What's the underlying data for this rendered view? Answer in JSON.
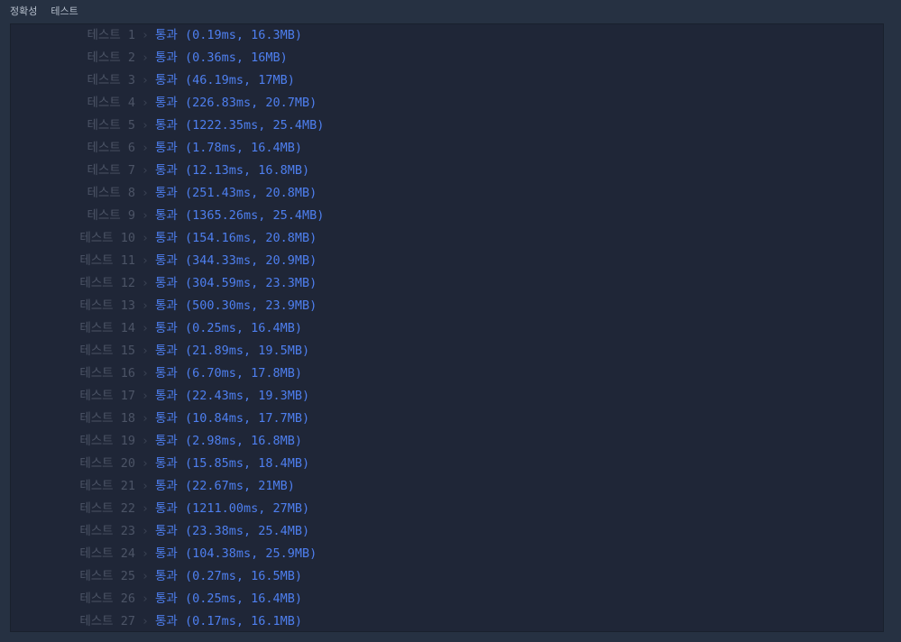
{
  "tabs": [
    "정확성",
    "테스트"
  ],
  "colors": {
    "pass": "#4e7fef",
    "label": "#4c5466",
    "background": "#263142",
    "panel": "#1f2637"
  },
  "chevron_icon": "chevron-right-icon",
  "tests": [
    {
      "label": "테스트 1",
      "status": "통과",
      "detail": "(0.19ms, 16.3MB)"
    },
    {
      "label": "테스트 2",
      "status": "통과",
      "detail": "(0.36ms, 16MB)"
    },
    {
      "label": "테스트 3",
      "status": "통과",
      "detail": "(46.19ms, 17MB)"
    },
    {
      "label": "테스트 4",
      "status": "통과",
      "detail": "(226.83ms, 20.7MB)"
    },
    {
      "label": "테스트 5",
      "status": "통과",
      "detail": "(1222.35ms, 25.4MB)"
    },
    {
      "label": "테스트 6",
      "status": "통과",
      "detail": "(1.78ms, 16.4MB)"
    },
    {
      "label": "테스트 7",
      "status": "통과",
      "detail": "(12.13ms, 16.8MB)"
    },
    {
      "label": "테스트 8",
      "status": "통과",
      "detail": "(251.43ms, 20.8MB)"
    },
    {
      "label": "테스트 9",
      "status": "통과",
      "detail": "(1365.26ms, 25.4MB)"
    },
    {
      "label": "테스트 10",
      "status": "통과",
      "detail": "(154.16ms, 20.8MB)"
    },
    {
      "label": "테스트 11",
      "status": "통과",
      "detail": "(344.33ms, 20.9MB)"
    },
    {
      "label": "테스트 12",
      "status": "통과",
      "detail": "(304.59ms, 23.3MB)"
    },
    {
      "label": "테스트 13",
      "status": "통과",
      "detail": "(500.30ms, 23.9MB)"
    },
    {
      "label": "테스트 14",
      "status": "통과",
      "detail": "(0.25ms, 16.4MB)"
    },
    {
      "label": "테스트 15",
      "status": "통과",
      "detail": "(21.89ms, 19.5MB)"
    },
    {
      "label": "테스트 16",
      "status": "통과",
      "detail": "(6.70ms, 17.8MB)"
    },
    {
      "label": "테스트 17",
      "status": "통과",
      "detail": "(22.43ms, 19.3MB)"
    },
    {
      "label": "테스트 18",
      "status": "통과",
      "detail": "(10.84ms, 17.7MB)"
    },
    {
      "label": "테스트 19",
      "status": "통과",
      "detail": "(2.98ms, 16.8MB)"
    },
    {
      "label": "테스트 20",
      "status": "통과",
      "detail": "(15.85ms, 18.4MB)"
    },
    {
      "label": "테스트 21",
      "status": "통과",
      "detail": "(22.67ms, 21MB)"
    },
    {
      "label": "테스트 22",
      "status": "통과",
      "detail": "(1211.00ms, 27MB)"
    },
    {
      "label": "테스트 23",
      "status": "통과",
      "detail": "(23.38ms, 25.4MB)"
    },
    {
      "label": "테스트 24",
      "status": "통과",
      "detail": "(104.38ms, 25.9MB)"
    },
    {
      "label": "테스트 25",
      "status": "통과",
      "detail": "(0.27ms, 16.5MB)"
    },
    {
      "label": "테스트 26",
      "status": "통과",
      "detail": "(0.25ms, 16.4MB)"
    },
    {
      "label": "테스트 27",
      "status": "통과",
      "detail": "(0.17ms, 16.1MB)"
    }
  ]
}
